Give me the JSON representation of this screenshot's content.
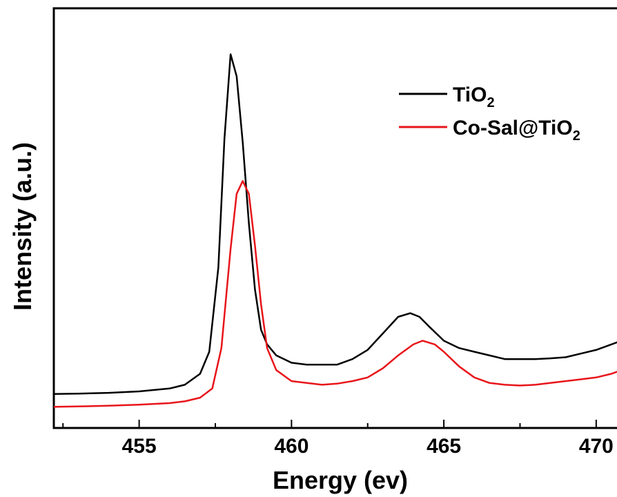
{
  "chart_data": {
    "type": "line",
    "xlabel": "Energy (ev)",
    "ylabel": "Intensity (a.u.)",
    "xlim": [
      452.2,
      471.0
    ],
    "ylim": [
      0,
      1.0
    ],
    "x_ticks": [
      455,
      460,
      465,
      470
    ],
    "x_tick_labels": [
      "455",
      "460",
      "465",
      "470"
    ],
    "x_minor_ticks": [
      452.5,
      457.5,
      462.5,
      467.5
    ],
    "y_ticks_visible": false,
    "grid": false,
    "legend_position": "top-right",
    "series": [
      {
        "name": "TiO2",
        "name_main": "TiO",
        "name_sub": "2",
        "color": "#000000",
        "x": [
          452.2,
          453,
          454,
          455,
          455.5,
          456,
          456.5,
          457,
          457.3,
          457.6,
          457.8,
          458,
          458.2,
          458.4,
          458.6,
          458.8,
          459,
          459.2,
          459.5,
          460,
          460.5,
          461,
          461.5,
          462,
          462.5,
          463,
          463.5,
          463.9,
          464.2,
          464.5,
          465,
          465.5,
          466,
          466.5,
          467,
          467.5,
          468,
          468.5,
          469,
          469.5,
          470,
          470.5,
          471
        ],
        "y": [
          0.055,
          0.056,
          0.058,
          0.062,
          0.066,
          0.07,
          0.08,
          0.11,
          0.17,
          0.4,
          0.75,
          0.98,
          0.92,
          0.74,
          0.52,
          0.34,
          0.23,
          0.19,
          0.16,
          0.14,
          0.135,
          0.135,
          0.135,
          0.15,
          0.175,
          0.22,
          0.265,
          0.275,
          0.265,
          0.24,
          0.2,
          0.18,
          0.17,
          0.16,
          0.15,
          0.15,
          0.15,
          0.152,
          0.155,
          0.165,
          0.175,
          0.19,
          0.205
        ]
      },
      {
        "name": "Co-Sal@TiO2",
        "name_main": "Co-Sal@TiO",
        "name_sub": "2",
        "color": "#e8141a",
        "x": [
          452.2,
          453,
          454,
          455,
          455.5,
          456,
          456.5,
          457,
          457.4,
          457.7,
          458,
          458.2,
          458.4,
          458.6,
          458.8,
          459,
          459.2,
          459.5,
          460,
          460.5,
          461,
          461.5,
          462,
          462.5,
          463,
          463.5,
          464,
          464.3,
          464.7,
          465,
          465.5,
          466,
          466.5,
          467,
          467.5,
          468,
          468.5,
          469,
          469.5,
          470,
          470.5,
          471
        ],
        "y": [
          0.02,
          0.021,
          0.023,
          0.026,
          0.028,
          0.03,
          0.035,
          0.045,
          0.07,
          0.18,
          0.45,
          0.6,
          0.635,
          0.6,
          0.46,
          0.3,
          0.18,
          0.12,
          0.09,
          0.085,
          0.08,
          0.083,
          0.09,
          0.1,
          0.125,
          0.16,
          0.19,
          0.2,
          0.19,
          0.17,
          0.13,
          0.1,
          0.085,
          0.08,
          0.078,
          0.08,
          0.085,
          0.09,
          0.095,
          0.1,
          0.11,
          0.125
        ]
      }
    ]
  }
}
